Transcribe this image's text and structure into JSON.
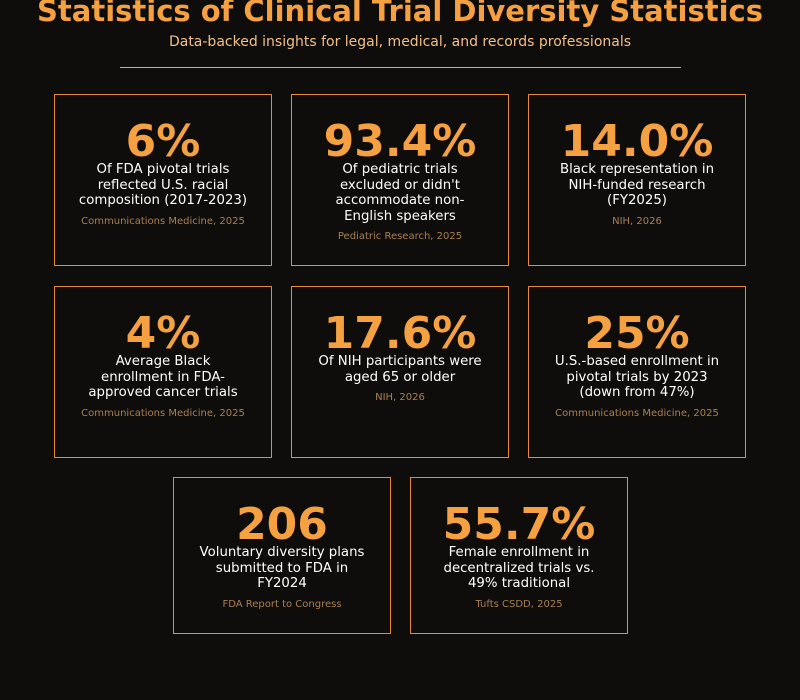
{
  "header": {
    "title": "Statistics of Clinical Trial Diversity Statistics",
    "subtitle": "Data-backed insights for legal, medical, and records professionals"
  },
  "cards": [
    {
      "value": "6%",
      "description": "Of FDA pivotal trials reflected U.S. racial composition (2017-2023)",
      "source": "Communications Medicine, 2025"
    },
    {
      "value": "93.4%",
      "description": "Of pediatric trials excluded or didn't accommodate non-English speakers",
      "source": "Pediatric Research, 2025"
    },
    {
      "value": "14.0%",
      "description": "Black representation in NIH-funded research (FY2025)",
      "source": "NIH, 2026"
    },
    {
      "value": "4%",
      "description": "Average Black enrollment in FDA-approved cancer trials",
      "source": "Communications Medicine, 2025"
    },
    {
      "value": "17.6%",
      "description": "Of NIH participants were aged 65 or older",
      "source": "NIH, 2026"
    },
    {
      "value": "25%",
      "description": "U.S.-based enrollment in pivotal trials by 2023 (down from 47%)",
      "source": "Communications Medicine, 2025"
    },
    {
      "value": "206",
      "description": "Voluntary diversity plans submitted to FDA in FY2024",
      "source": "FDA Report to Congress"
    },
    {
      "value": "55.7%",
      "description": "Female enrollment in decentralized trials vs. 49% traditional",
      "source": "Tufts CSDD, 2025"
    }
  ]
}
